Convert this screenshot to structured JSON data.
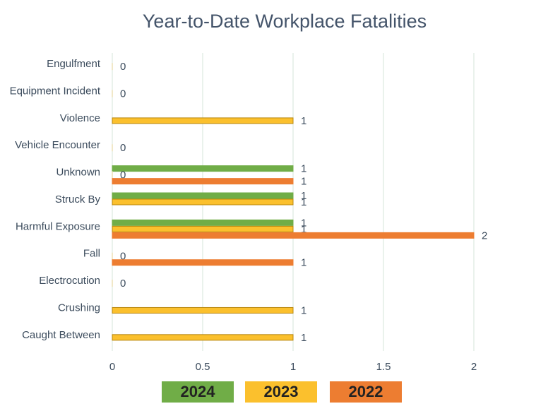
{
  "chart_data": {
    "type": "hbar",
    "title": "Year-to-Date Workplace Fatalities",
    "categories": [
      "Engulfment",
      "Equipment Incident",
      "Violence",
      "Vehicle Encounter",
      "Unknown",
      "Struck By",
      "Harmful Exposure",
      "Fall",
      "Electrocution",
      "Crushing",
      "Caught Between"
    ],
    "series": [
      {
        "name": "2024",
        "color": "#70ad47",
        "values": [
          null,
          null,
          null,
          null,
          1,
          1,
          1,
          null,
          null,
          null,
          null
        ]
      },
      {
        "name": "2023",
        "color": "#fbc02d",
        "values": [
          0,
          0,
          1,
          0,
          0,
          1,
          1,
          0,
          0,
          1,
          1
        ]
      },
      {
        "name": "2022",
        "color": "#ed7d31",
        "values": [
          null,
          null,
          null,
          null,
          1,
          null,
          2,
          1,
          null,
          null,
          null
        ]
      }
    ],
    "xlim": [
      0,
      2
    ],
    "xticks": [
      0,
      0.5,
      1,
      1.5,
      2
    ],
    "grid": true
  }
}
